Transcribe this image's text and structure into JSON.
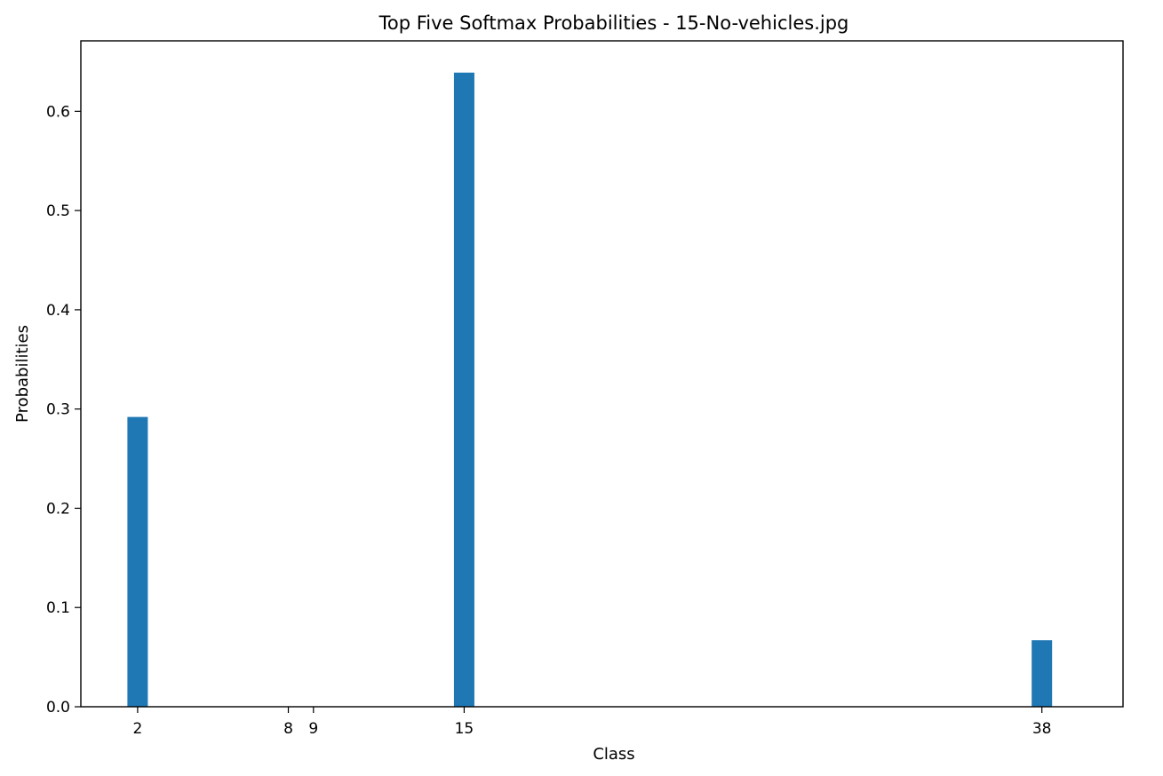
{
  "chart_data": {
    "type": "bar",
    "title": "Top Five Softmax Probabilities - 15-No-vehicles.jpg",
    "xlabel": "Class",
    "ylabel": "Probabilities",
    "x": [
      2,
      8,
      9,
      15,
      38
    ],
    "values": [
      0.292,
      0.0001,
      0.0001,
      0.639,
      0.067
    ],
    "x_ticks": [
      2,
      8,
      9,
      15,
      38
    ],
    "y_ticks": [
      "0.0",
      "0.1",
      "0.2",
      "0.3",
      "0.4",
      "0.5",
      "0.6"
    ],
    "xlim": [
      -0.26,
      41.23
    ],
    "ylim": [
      0,
      0.671
    ],
    "grid": false,
    "legend": "none",
    "bar_color": "#1f77b4"
  }
}
